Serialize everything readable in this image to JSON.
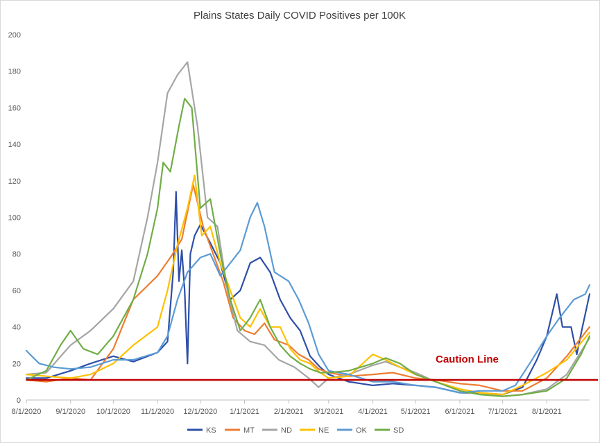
{
  "chart_data": {
    "type": "line",
    "title": "Plains States Daily COVID Positives per 100K",
    "xlabel": "",
    "ylabel": "",
    "ylim": [
      0,
      200
    ],
    "yticks": [
      0,
      20,
      40,
      60,
      80,
      100,
      120,
      140,
      160,
      180,
      200
    ],
    "xlim": [
      "2020-08-01",
      "2021-08-31"
    ],
    "xticks": [
      {
        "date": "2020-08-01",
        "label": "8/1/2020"
      },
      {
        "date": "2020-09-01",
        "label": "9/1/2020"
      },
      {
        "date": "2020-10-01",
        "label": "10/1/2020"
      },
      {
        "date": "2020-11-01",
        "label": "11/1/2020"
      },
      {
        "date": "2020-12-01",
        "label": "12/1/2020"
      },
      {
        "date": "2021-01-01",
        "label": "1/1/2021"
      },
      {
        "date": "2021-02-01",
        "label": "2/1/2021"
      },
      {
        "date": "2021-03-01",
        "label": "3/1/2021"
      },
      {
        "date": "2021-04-01",
        "label": "4/1/2021"
      },
      {
        "date": "2021-05-01",
        "label": "5/1/2021"
      },
      {
        "date": "2021-06-01",
        "label": "6/1/2021"
      },
      {
        "date": "2021-07-01",
        "label": "7/1/2021"
      },
      {
        "date": "2021-08-01",
        "label": "8/1/2021"
      }
    ],
    "grid": false,
    "legend_position": "bottom",
    "caution_line": {
      "value": 11,
      "label": "Caution Line",
      "color": "#c00000"
    },
    "series": [
      {
        "name": "KS",
        "color": "#2e4fa8",
        "points": [
          [
            "2020-08-01",
            12
          ],
          [
            "2020-08-15",
            12
          ],
          [
            "2020-09-01",
            16
          ],
          [
            "2020-09-15",
            20
          ],
          [
            "2020-10-01",
            24
          ],
          [
            "2020-10-15",
            21
          ],
          [
            "2020-11-01",
            26
          ],
          [
            "2020-11-08",
            32
          ],
          [
            "2020-11-12",
            70
          ],
          [
            "2020-11-14",
            114
          ],
          [
            "2020-11-16",
            65
          ],
          [
            "2020-11-18",
            82
          ],
          [
            "2020-11-20",
            60
          ],
          [
            "2020-11-22",
            20
          ],
          [
            "2020-11-24",
            80
          ],
          [
            "2020-11-27",
            90
          ],
          [
            "2020-12-01",
            96
          ],
          [
            "2020-12-08",
            86
          ],
          [
            "2020-12-15",
            75
          ],
          [
            "2020-12-22",
            55
          ],
          [
            "2020-12-29",
            60
          ],
          [
            "2021-01-05",
            75
          ],
          [
            "2021-01-12",
            78
          ],
          [
            "2021-01-19",
            70
          ],
          [
            "2021-01-26",
            55
          ],
          [
            "2021-02-02",
            45
          ],
          [
            "2021-02-09",
            38
          ],
          [
            "2021-02-16",
            24
          ],
          [
            "2021-02-23",
            18
          ],
          [
            "2021-03-01",
            14
          ],
          [
            "2021-03-15",
            10
          ],
          [
            "2021-04-01",
            8
          ],
          [
            "2021-04-15",
            9
          ],
          [
            "2021-05-01",
            8
          ],
          [
            "2021-05-15",
            7
          ],
          [
            "2021-06-01",
            4
          ],
          [
            "2021-06-15",
            4
          ],
          [
            "2021-07-01",
            3
          ],
          [
            "2021-07-15",
            7
          ],
          [
            "2021-07-25",
            22
          ],
          [
            "2021-08-01",
            35
          ],
          [
            "2021-08-08",
            58
          ],
          [
            "2021-08-12",
            40
          ],
          [
            "2021-08-18",
            40
          ],
          [
            "2021-08-22",
            25
          ],
          [
            "2021-08-26",
            40
          ],
          [
            "2021-08-31",
            58
          ]
        ]
      },
      {
        "name": "MT",
        "color": "#ed7d31",
        "points": [
          [
            "2020-08-01",
            11
          ],
          [
            "2020-08-15",
            10
          ],
          [
            "2020-09-01",
            12
          ],
          [
            "2020-09-15",
            11
          ],
          [
            "2020-10-01",
            28
          ],
          [
            "2020-10-15",
            55
          ],
          [
            "2020-11-01",
            68
          ],
          [
            "2020-11-10",
            78
          ],
          [
            "2020-11-18",
            88
          ],
          [
            "2020-11-26",
            118
          ],
          [
            "2020-12-03",
            95
          ],
          [
            "2020-12-10",
            80
          ],
          [
            "2020-12-17",
            65
          ],
          [
            "2020-12-24",
            45
          ],
          [
            "2021-01-01",
            38
          ],
          [
            "2021-01-08",
            36
          ],
          [
            "2021-01-15",
            42
          ],
          [
            "2021-01-22",
            33
          ],
          [
            "2021-02-01",
            30
          ],
          [
            "2021-02-08",
            25
          ],
          [
            "2021-02-15",
            22
          ],
          [
            "2021-02-22",
            17
          ],
          [
            "2021-03-01",
            15
          ],
          [
            "2021-03-15",
            13
          ],
          [
            "2021-04-01",
            14
          ],
          [
            "2021-04-15",
            15
          ],
          [
            "2021-05-01",
            12
          ],
          [
            "2021-05-15",
            11
          ],
          [
            "2021-06-01",
            9
          ],
          [
            "2021-06-15",
            8
          ],
          [
            "2021-07-01",
            5
          ],
          [
            "2021-07-15",
            5
          ],
          [
            "2021-08-01",
            12
          ],
          [
            "2021-08-15",
            24
          ],
          [
            "2021-08-31",
            40
          ]
        ]
      },
      {
        "name": "ND",
        "color": "#a5a5a5",
        "points": [
          [
            "2020-08-01",
            14
          ],
          [
            "2020-08-15",
            15
          ],
          [
            "2020-09-01",
            30
          ],
          [
            "2020-09-15",
            38
          ],
          [
            "2020-10-01",
            50
          ],
          [
            "2020-10-15",
            65
          ],
          [
            "2020-10-25",
            100
          ],
          [
            "2020-11-01",
            130
          ],
          [
            "2020-11-08",
            168
          ],
          [
            "2020-11-15",
            178
          ],
          [
            "2020-11-22",
            185
          ],
          [
            "2020-11-29",
            150
          ],
          [
            "2020-12-06",
            100
          ],
          [
            "2020-12-13",
            95
          ],
          [
            "2020-12-20",
            60
          ],
          [
            "2020-12-27",
            38
          ],
          [
            "2021-01-05",
            32
          ],
          [
            "2021-01-15",
            30
          ],
          [
            "2021-01-25",
            22
          ],
          [
            "2021-02-05",
            18
          ],
          [
            "2021-02-15",
            12
          ],
          [
            "2021-02-22",
            7
          ],
          [
            "2021-03-01",
            12
          ],
          [
            "2021-03-15",
            14
          ],
          [
            "2021-04-01",
            19
          ],
          [
            "2021-04-10",
            21
          ],
          [
            "2021-04-20",
            18
          ],
          [
            "2021-05-01",
            15
          ],
          [
            "2021-05-15",
            10
          ],
          [
            "2021-06-01",
            6
          ],
          [
            "2021-06-15",
            4
          ],
          [
            "2021-07-01",
            2
          ],
          [
            "2021-07-15",
            3
          ],
          [
            "2021-08-01",
            6
          ],
          [
            "2021-08-15",
            14
          ],
          [
            "2021-08-31",
            34
          ]
        ]
      },
      {
        "name": "NE",
        "color": "#ffc000",
        "points": [
          [
            "2020-08-01",
            14
          ],
          [
            "2020-08-15",
            13
          ],
          [
            "2020-09-01",
            12
          ],
          [
            "2020-09-15",
            14
          ],
          [
            "2020-10-01",
            20
          ],
          [
            "2020-10-15",
            30
          ],
          [
            "2020-11-01",
            40
          ],
          [
            "2020-11-08",
            60
          ],
          [
            "2020-11-15",
            85
          ],
          [
            "2020-11-22",
            105
          ],
          [
            "2020-11-27",
            123
          ],
          [
            "2020-12-02",
            90
          ],
          [
            "2020-12-08",
            95
          ],
          [
            "2020-12-15",
            75
          ],
          [
            "2020-12-22",
            60
          ],
          [
            "2020-12-29",
            45
          ],
          [
            "2021-01-05",
            40
          ],
          [
            "2021-01-12",
            50
          ],
          [
            "2021-01-19",
            40
          ],
          [
            "2021-01-26",
            40
          ],
          [
            "2021-02-02",
            28
          ],
          [
            "2021-02-09",
            22
          ],
          [
            "2021-02-16",
            20
          ],
          [
            "2021-02-23",
            15
          ],
          [
            "2021-03-01",
            12
          ],
          [
            "2021-03-15",
            13
          ],
          [
            "2021-04-01",
            25
          ],
          [
            "2021-04-10",
            22
          ],
          [
            "2021-04-20",
            18
          ],
          [
            "2021-05-01",
            14
          ],
          [
            "2021-05-15",
            10
          ],
          [
            "2021-06-01",
            6
          ],
          [
            "2021-06-15",
            4
          ],
          [
            "2021-07-01",
            3
          ],
          [
            "2021-07-15",
            8
          ],
          [
            "2021-08-01",
            15
          ],
          [
            "2021-08-15",
            22
          ],
          [
            "2021-08-31",
            37
          ]
        ]
      },
      {
        "name": "OK",
        "color": "#5b9bd5",
        "points": [
          [
            "2020-08-01",
            27
          ],
          [
            "2020-08-10",
            20
          ],
          [
            "2020-08-20",
            18
          ],
          [
            "2020-09-01",
            17
          ],
          [
            "2020-09-15",
            18
          ],
          [
            "2020-10-01",
            22
          ],
          [
            "2020-10-15",
            22
          ],
          [
            "2020-11-01",
            26
          ],
          [
            "2020-11-08",
            35
          ],
          [
            "2020-11-15",
            55
          ],
          [
            "2020-11-22",
            70
          ],
          [
            "2020-12-01",
            78
          ],
          [
            "2020-12-08",
            80
          ],
          [
            "2020-12-15",
            68
          ],
          [
            "2020-12-22",
            75
          ],
          [
            "2020-12-29",
            82
          ],
          [
            "2021-01-05",
            100
          ],
          [
            "2021-01-10",
            108
          ],
          [
            "2021-01-15",
            95
          ],
          [
            "2021-01-22",
            70
          ],
          [
            "2021-02-01",
            65
          ],
          [
            "2021-02-08",
            55
          ],
          [
            "2021-02-15",
            42
          ],
          [
            "2021-02-22",
            25
          ],
          [
            "2021-03-01",
            16
          ],
          [
            "2021-03-15",
            14
          ],
          [
            "2021-04-01",
            10
          ],
          [
            "2021-04-15",
            10
          ],
          [
            "2021-05-01",
            8
          ],
          [
            "2021-05-15",
            7
          ],
          [
            "2021-06-01",
            4
          ],
          [
            "2021-06-15",
            5
          ],
          [
            "2021-07-01",
            5
          ],
          [
            "2021-07-10",
            8
          ],
          [
            "2021-07-20",
            20
          ],
          [
            "2021-08-01",
            35
          ],
          [
            "2021-08-10",
            45
          ],
          [
            "2021-08-20",
            55
          ],
          [
            "2021-08-28",
            58
          ],
          [
            "2021-08-31",
            63
          ]
        ]
      },
      {
        "name": "SD",
        "color": "#70ad47",
        "points": [
          [
            "2020-08-01",
            11
          ],
          [
            "2020-08-15",
            16
          ],
          [
            "2020-08-25",
            30
          ],
          [
            "2020-09-01",
            38
          ],
          [
            "2020-09-10",
            28
          ],
          [
            "2020-09-20",
            25
          ],
          [
            "2020-10-01",
            35
          ],
          [
            "2020-10-15",
            55
          ],
          [
            "2020-10-25",
            80
          ],
          [
            "2020-11-01",
            105
          ],
          [
            "2020-11-05",
            130
          ],
          [
            "2020-11-10",
            125
          ],
          [
            "2020-11-16",
            150
          ],
          [
            "2020-11-20",
            165
          ],
          [
            "2020-11-25",
            160
          ],
          [
            "2020-12-01",
            105
          ],
          [
            "2020-12-08",
            110
          ],
          [
            "2020-12-15",
            80
          ],
          [
            "2020-12-22",
            55
          ],
          [
            "2020-12-29",
            38
          ],
          [
            "2021-01-05",
            45
          ],
          [
            "2021-01-12",
            55
          ],
          [
            "2021-01-19",
            40
          ],
          [
            "2021-01-26",
            30
          ],
          [
            "2021-02-02",
            24
          ],
          [
            "2021-02-09",
            20
          ],
          [
            "2021-02-16",
            17
          ],
          [
            "2021-02-23",
            15
          ],
          [
            "2021-03-01",
            15
          ],
          [
            "2021-03-15",
            16
          ],
          [
            "2021-04-01",
            20
          ],
          [
            "2021-04-10",
            23
          ],
          [
            "2021-04-20",
            20
          ],
          [
            "2021-05-01",
            14
          ],
          [
            "2021-05-15",
            10
          ],
          [
            "2021-06-01",
            5
          ],
          [
            "2021-06-15",
            3
          ],
          [
            "2021-07-01",
            2
          ],
          [
            "2021-07-15",
            3
          ],
          [
            "2021-08-01",
            5
          ],
          [
            "2021-08-15",
            12
          ],
          [
            "2021-08-25",
            25
          ],
          [
            "2021-08-31",
            35
          ]
        ]
      }
    ]
  }
}
